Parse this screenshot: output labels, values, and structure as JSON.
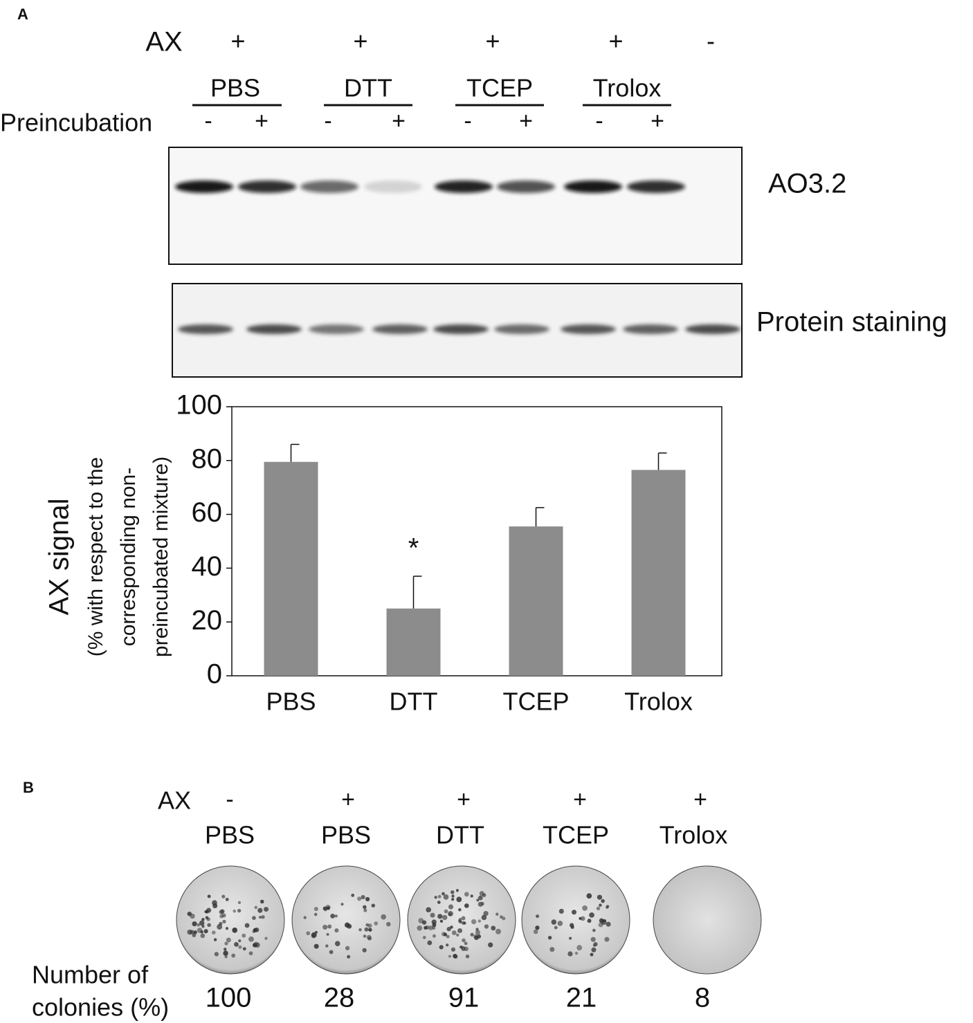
{
  "panel_a": {
    "label": "A",
    "ax_label": "AX",
    "ax_signs": [
      "+",
      "+",
      "+",
      "+",
      "-"
    ],
    "treatments": [
      "PBS",
      "DTT",
      "TCEP",
      "Trolox"
    ],
    "preincubation_label": "Preincubation",
    "preincubation_signs": [
      "-",
      "+",
      "-",
      "+",
      "-",
      "+",
      "-",
      "+"
    ],
    "blot_labels": [
      "AO3.2",
      "Protein staining"
    ]
  },
  "chart_data": {
    "type": "bar",
    "y_label": "AX signal",
    "y_sublabel": [
      "(% with respect to the",
      "corresponding non-",
      "preincubated mixture)"
    ],
    "categories": [
      "PBS",
      "DTT",
      "TCEP",
      "Trolox"
    ],
    "values": [
      79.5,
      25,
      55.5,
      76.5
    ],
    "errors": [
      6.5,
      12,
      7,
      6.3
    ],
    "color": "#8c8c8c",
    "ylim": [
      0,
      100
    ],
    "yticks": [
      0,
      20,
      40,
      60,
      80,
      100
    ],
    "annotations": [
      {
        "text": "*",
        "category": "DTT"
      }
    ]
  },
  "panel_b": {
    "label": "B",
    "ax_label": "AX",
    "ax_signs": [
      "-",
      "+",
      "+",
      "+",
      "+"
    ],
    "treatments": [
      "PBS",
      "PBS",
      "DTT",
      "TCEP",
      "Trolox"
    ],
    "colonies_label": [
      "Number of",
      "colonies (%)"
    ],
    "colonies": [
      100,
      28,
      91,
      21,
      8
    ]
  }
}
